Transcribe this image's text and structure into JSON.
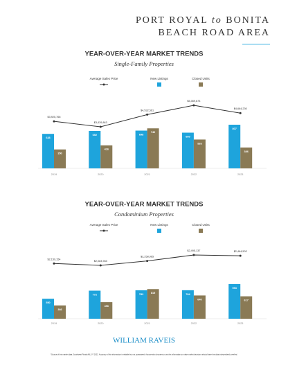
{
  "header": {
    "title_parts": [
      "PORT ROYAL",
      "to",
      "BONITA",
      "BEACH ROAD AREA"
    ]
  },
  "chart_data": [
    {
      "type": "bar-line",
      "title": "YEAR-OVER-YEAR MARKET TRENDS",
      "subtitle": "Single-Family Properties",
      "categories": [
        "2019",
        "2020",
        "2021",
        "2022",
        "2023"
      ],
      "series": [
        {
          "name": "Average Sales Price",
          "type": "line",
          "color": "#333333",
          "values": [
            3925766,
            3439843,
            4532561,
            5359673,
            4664230
          ],
          "value_labels": [
            "$3,925,766",
            "$3,439,843",
            "$4,532,561",
            "$5,359,673",
            "$4,664,230"
          ]
        },
        {
          "name": "New Listings",
          "type": "bar",
          "color": "#1ea4dc",
          "values": [
            638,
            692,
            698,
            660,
            807
          ]
        },
        {
          "name": "Closed Units",
          "type": "bar",
          "color": "#8a7a55",
          "values": [
            350,
            426,
            740,
            533,
            386
          ]
        }
      ]
    },
    {
      "type": "bar-line",
      "title": "YEAR-OVER-YEAR MARKET TRENDS",
      "subtitle": "Condominium Properties",
      "categories": [
        "2019",
        "2020",
        "2021",
        "2022",
        "2023"
      ],
      "series": [
        {
          "name": "Average Sales Price",
          "type": "line",
          "color": "#333333",
          "values": [
            2159154,
            2083933,
            2258965,
            2495137,
            2464502
          ],
          "value_labels": [
            "$2,159,154",
            "$2,083,933",
            "$2,258,965",
            "$2,495,137",
            "$2,464,502"
          ]
        },
        {
          "name": "New Listings",
          "type": "bar",
          "color": "#1ea4dc",
          "values": [
            550,
            772,
            783,
            784,
            953
          ]
        },
        {
          "name": "Closed Units",
          "type": "bar",
          "color": "#8a7a55",
          "values": [
            366,
            456,
            815,
            640,
            617
          ]
        }
      ]
    }
  ],
  "footer": {
    "brand": "WILLIAM RAVEIS",
    "note": "*Source of this market data: Southwest Florida MLS © 2022. Accuracy of this information is reliable but not guaranteed. Anyone who chooses to use this information to make market decisions should have this data independently verified."
  }
}
